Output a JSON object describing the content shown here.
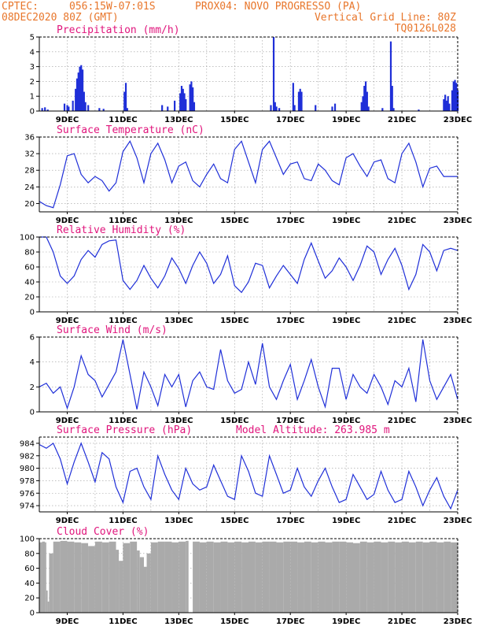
{
  "header": {
    "line1_left": "CPTEC:",
    "line1_coords": "056:15W-07:01S",
    "line1_station": "PROX04: NOVO PROGRESSO (PA)",
    "line2_left": "08DEC2020 80Z (GMT)",
    "line2_right": "Vertical Grid Line: 80Z",
    "line3_right": "TQ0126L028"
  },
  "colors": {
    "series": "#1f2fd8",
    "cloud": "#aaaaaa",
    "header": "#e8762b",
    "title": "#e0157c",
    "grid": "#9a9a9a"
  },
  "x_tick_labels": [
    "9DEC",
    "11DEC",
    "13DEC",
    "15DEC",
    "17DEC",
    "19DEC",
    "21DEC",
    "23DEC"
  ],
  "chart_data": [
    {
      "type": "bar",
      "title": "Precipitation (mm/h)",
      "ylim": [
        0,
        5
      ],
      "yticks": [
        0,
        1,
        2,
        3,
        4,
        5
      ],
      "x_start_day": 8.0,
      "x_end_day": 23.0,
      "values": [
        [
          8.1,
          0.2
        ],
        [
          8.2,
          0.25
        ],
        [
          8.3,
          0.1
        ],
        [
          8.9,
          0.5
        ],
        [
          9.0,
          0.4
        ],
        [
          9.05,
          0.3
        ],
        [
          9.2,
          0.7
        ],
        [
          9.3,
          1.5
        ],
        [
          9.35,
          2.2
        ],
        [
          9.4,
          2.6
        ],
        [
          9.45,
          3.0
        ],
        [
          9.5,
          3.1
        ],
        [
          9.55,
          2.8
        ],
        [
          9.6,
          1.3
        ],
        [
          9.65,
          0.6
        ],
        [
          9.75,
          0.4
        ],
        [
          10.15,
          0.2
        ],
        [
          10.3,
          0.15
        ],
        [
          11.05,
          1.3
        ],
        [
          11.1,
          1.9
        ],
        [
          11.15,
          0.2
        ],
        [
          12.4,
          0.4
        ],
        [
          12.6,
          0.3
        ],
        [
          12.85,
          0.7
        ],
        [
          13.05,
          1.2
        ],
        [
          13.1,
          1.7
        ],
        [
          13.15,
          1.5
        ],
        [
          13.2,
          1.2
        ],
        [
          13.25,
          0.8
        ],
        [
          13.4,
          1.8
        ],
        [
          13.45,
          2.0
        ],
        [
          13.5,
          1.6
        ],
        [
          13.55,
          0.6
        ],
        [
          16.3,
          0.4
        ],
        [
          16.4,
          5.0
        ],
        [
          16.45,
          0.6
        ],
        [
          16.5,
          0.3
        ],
        [
          16.6,
          0.2
        ],
        [
          17.1,
          1.9
        ],
        [
          17.15,
          0.4
        ],
        [
          17.3,
          1.3
        ],
        [
          17.35,
          1.5
        ],
        [
          17.4,
          1.3
        ],
        [
          17.9,
          0.4
        ],
        [
          18.5,
          0.3
        ],
        [
          18.6,
          0.5
        ],
        [
          19.55,
          0.6
        ],
        [
          19.6,
          1.0
        ],
        [
          19.65,
          1.7
        ],
        [
          19.7,
          2.0
        ],
        [
          19.75,
          1.3
        ],
        [
          19.8,
          0.3
        ],
        [
          20.3,
          0.2
        ],
        [
          20.6,
          4.7
        ],
        [
          20.65,
          1.7
        ],
        [
          20.7,
          0.2
        ],
        [
          21.6,
          0.1
        ],
        [
          22.5,
          0.8
        ],
        [
          22.55,
          1.1
        ],
        [
          22.6,
          0.7
        ],
        [
          22.65,
          1.0
        ],
        [
          22.7,
          0.5
        ],
        [
          22.8,
          1.4
        ],
        [
          22.85,
          2.0
        ],
        [
          22.9,
          2.1
        ],
        [
          22.95,
          1.9
        ],
        [
          23.0,
          1.4
        ]
      ]
    },
    {
      "type": "line",
      "title": "Surface Temperature (nC)",
      "ylim": [
        18,
        36
      ],
      "yticks": [
        20,
        24,
        28,
        32,
        36
      ],
      "x": [
        8.0,
        8.25,
        8.5,
        8.75,
        9.0,
        9.25,
        9.5,
        9.75,
        10.0,
        10.25,
        10.5,
        10.75,
        11.0,
        11.25,
        11.5,
        11.75,
        12.0,
        12.25,
        12.5,
        12.75,
        13.0,
        13.25,
        13.5,
        13.75,
        14.0,
        14.25,
        14.5,
        14.75,
        15.0,
        15.25,
        15.5,
        15.75,
        16.0,
        16.25,
        16.5,
        16.75,
        17.0,
        17.25,
        17.5,
        17.75,
        18.0,
        18.25,
        18.5,
        18.75,
        19.0,
        19.25,
        19.5,
        19.75,
        20.0,
        20.25,
        20.5,
        20.75,
        21.0,
        21.25,
        21.5,
        21.75,
        22.0,
        22.25,
        22.5,
        22.75,
        23.0
      ],
      "y": [
        20.5,
        19.5,
        19.0,
        24.5,
        31.5,
        32.0,
        27.0,
        25.0,
        26.5,
        25.5,
        23.0,
        25.0,
        32.5,
        35.0,
        31.0,
        25.0,
        32.0,
        34.5,
        30.5,
        25.0,
        29.0,
        30.0,
        25.5,
        24.0,
        27.0,
        29.5,
        26.0,
        25.0,
        33.0,
        35.0,
        30.0,
        25.0,
        33.0,
        35.0,
        31.0,
        27.0,
        29.5,
        30.0,
        26.0,
        25.5,
        29.5,
        28.0,
        25.5,
        24.5,
        31.0,
        32.0,
        29.0,
        26.5,
        30.0,
        30.5,
        26.0,
        25.0,
        32.0,
        34.5,
        30.0,
        24.0,
        28.5,
        29.0,
        26.5,
        26.5,
        26.5
      ]
    },
    {
      "type": "line",
      "title": "Relative Humidity (%)",
      "ylim": [
        0,
        100
      ],
      "yticks": [
        0,
        20,
        40,
        60,
        80,
        100
      ],
      "x": [
        8.0,
        8.25,
        8.5,
        8.75,
        9.0,
        9.25,
        9.5,
        9.75,
        10.0,
        10.25,
        10.5,
        10.75,
        11.0,
        11.25,
        11.5,
        11.75,
        12.0,
        12.25,
        12.5,
        12.75,
        13.0,
        13.25,
        13.5,
        13.75,
        14.0,
        14.25,
        14.5,
        14.75,
        15.0,
        15.25,
        15.5,
        15.75,
        16.0,
        16.25,
        16.5,
        16.75,
        17.0,
        17.25,
        17.5,
        17.75,
        18.0,
        18.25,
        18.5,
        18.75,
        19.0,
        19.25,
        19.5,
        19.75,
        20.0,
        20.25,
        20.5,
        20.75,
        21.0,
        21.25,
        21.5,
        21.75,
        22.0,
        22.25,
        22.5,
        22.75,
        23.0
      ],
      "y": [
        100,
        100,
        80,
        48,
        38,
        48,
        70,
        82,
        73,
        90,
        95,
        96,
        42,
        30,
        42,
        62,
        45,
        32,
        48,
        72,
        58,
        38,
        62,
        80,
        65,
        38,
        50,
        75,
        35,
        26,
        40,
        65,
        62,
        32,
        48,
        62,
        50,
        38,
        70,
        92,
        68,
        45,
        55,
        72,
        60,
        42,
        62,
        88,
        80,
        50,
        70,
        85,
        62,
        30,
        50,
        90,
        80,
        55,
        82,
        85,
        82
      ]
    },
    {
      "type": "line",
      "title": "Surface Wind (m/s)",
      "ylim": [
        0,
        6
      ],
      "yticks": [
        0,
        2,
        4,
        6
      ],
      "x": [
        8.0,
        8.25,
        8.5,
        8.75,
        9.0,
        9.25,
        9.5,
        9.75,
        10.0,
        10.25,
        10.5,
        10.75,
        11.0,
        11.25,
        11.5,
        11.75,
        12.0,
        12.25,
        12.5,
        12.75,
        13.0,
        13.25,
        13.5,
        13.75,
        14.0,
        14.25,
        14.5,
        14.75,
        15.0,
        15.25,
        15.5,
        15.75,
        16.0,
        16.25,
        16.5,
        16.75,
        17.0,
        17.25,
        17.5,
        17.75,
        18.0,
        18.25,
        18.5,
        18.75,
        19.0,
        19.25,
        19.5,
        19.75,
        20.0,
        20.25,
        20.5,
        20.75,
        21.0,
        21.25,
        21.5,
        21.75,
        22.0,
        22.25,
        22.5,
        22.75,
        23.0
      ],
      "y": [
        2.0,
        2.3,
        1.5,
        2.0,
        0.3,
        2.0,
        4.5,
        3.0,
        2.5,
        1.2,
        2.2,
        3.2,
        5.8,
        3.0,
        0.2,
        3.2,
        2.0,
        0.5,
        3.0,
        2.0,
        3.0,
        0.4,
        2.5,
        3.2,
        2.0,
        1.8,
        5.0,
        2.5,
        1.5,
        1.8,
        4.0,
        2.2,
        5.5,
        2.0,
        1.0,
        2.5,
        3.8,
        1.0,
        2.5,
        4.2,
        2.0,
        0.4,
        3.5,
        3.5,
        1.0,
        3.0,
        2.0,
        1.5,
        3.0,
        2.0,
        0.6,
        2.5,
        2.0,
        3.5,
        0.8,
        5.8,
        2.5,
        1.0,
        2.0,
        3.0,
        1.0
      ]
    },
    {
      "type": "line",
      "title": "Surface Pressure (hPa)",
      "subtitle": "Model Altitude: 263.985 m",
      "ylim": [
        973,
        985
      ],
      "yticks": [
        974,
        976,
        978,
        980,
        982,
        984
      ],
      "x": [
        8.0,
        8.25,
        8.5,
        8.75,
        9.0,
        9.25,
        9.5,
        9.75,
        10.0,
        10.25,
        10.5,
        10.75,
        11.0,
        11.25,
        11.5,
        11.75,
        12.0,
        12.25,
        12.5,
        12.75,
        13.0,
        13.25,
        13.5,
        13.75,
        14.0,
        14.25,
        14.5,
        14.75,
        15.0,
        15.25,
        15.5,
        15.75,
        16.0,
        16.25,
        16.5,
        16.75,
        17.0,
        17.25,
        17.5,
        17.75,
        18.0,
        18.25,
        18.5,
        18.75,
        19.0,
        19.25,
        19.5,
        19.75,
        20.0,
        20.25,
        20.5,
        20.75,
        21.0,
        21.25,
        21.5,
        21.75,
        22.0,
        22.25,
        22.5,
        22.75,
        23.0
      ],
      "y": [
        983.8,
        983.2,
        984.0,
        981.5,
        977.5,
        981.0,
        984.0,
        981.0,
        977.8,
        982.5,
        981.5,
        977.0,
        974.5,
        979.5,
        980.0,
        977.0,
        975.0,
        982.0,
        979.0,
        976.5,
        975.0,
        980.0,
        977.5,
        976.5,
        977.0,
        980.5,
        978.0,
        975.5,
        975.0,
        982.0,
        979.5,
        976.0,
        975.5,
        982.0,
        979.0,
        976.0,
        976.5,
        980.0,
        977.0,
        975.5,
        978.0,
        980.0,
        977.0,
        974.5,
        975.0,
        979.0,
        977.0,
        975.0,
        975.8,
        979.5,
        976.5,
        974.5,
        975.0,
        979.5,
        977.0,
        974.0,
        976.5,
        978.5,
        975.5,
        973.5,
        976.5
      ]
    },
    {
      "type": "bar",
      "title": "Cloud Cover (%)",
      "ylim": [
        0,
        100
      ],
      "yticks": [
        0,
        20,
        40,
        60,
        80,
        100
      ],
      "x_start_day": 8.0,
      "x_end_day": 23.0,
      "values": [
        [
          8.0,
          95
        ],
        [
          8.1,
          96
        ],
        [
          8.2,
          95
        ],
        [
          8.25,
          30
        ],
        [
          8.3,
          15
        ],
        [
          8.35,
          80
        ],
        [
          8.5,
          96
        ],
        [
          8.75,
          97
        ],
        [
          9.0,
          96
        ],
        [
          9.25,
          95
        ],
        [
          9.5,
          94
        ],
        [
          9.75,
          90
        ],
        [
          10.0,
          96
        ],
        [
          10.25,
          95
        ],
        [
          10.5,
          96
        ],
        [
          10.75,
          85
        ],
        [
          10.85,
          70
        ],
        [
          11.0,
          94
        ],
        [
          11.25,
          96
        ],
        [
          11.5,
          84
        ],
        [
          11.6,
          75
        ],
        [
          11.75,
          62
        ],
        [
          11.85,
          80
        ],
        [
          12.0,
          95
        ],
        [
          12.25,
          96
        ],
        [
          12.5,
          96
        ],
        [
          12.75,
          95
        ],
        [
          13.0,
          96
        ],
        [
          13.25,
          97
        ],
        [
          13.35,
          0
        ],
        [
          13.5,
          96
        ],
        [
          13.75,
          95
        ],
        [
          14.0,
          96
        ],
        [
          14.25,
          95
        ],
        [
          14.5,
          96
        ],
        [
          14.75,
          95
        ],
        [
          15.0,
          96
        ],
        [
          15.25,
          95
        ],
        [
          15.5,
          96
        ],
        [
          15.75,
          95
        ],
        [
          16.0,
          96
        ],
        [
          16.25,
          96
        ],
        [
          16.5,
          95
        ],
        [
          16.75,
          96
        ],
        [
          17.0,
          96
        ],
        [
          17.25,
          95
        ],
        [
          17.5,
          96
        ],
        [
          17.75,
          95
        ],
        [
          18.0,
          96
        ],
        [
          18.25,
          95
        ],
        [
          18.5,
          96
        ],
        [
          18.75,
          96
        ],
        [
          19.0,
          95
        ],
        [
          19.25,
          94
        ],
        [
          19.5,
          96
        ],
        [
          19.75,
          95
        ],
        [
          20.0,
          96
        ],
        [
          20.25,
          95
        ],
        [
          20.5,
          96
        ],
        [
          20.75,
          95
        ],
        [
          21.0,
          96
        ],
        [
          21.25,
          95
        ],
        [
          21.5,
          96
        ],
        [
          21.75,
          95
        ],
        [
          22.0,
          96
        ],
        [
          22.25,
          95
        ],
        [
          22.5,
          96
        ],
        [
          22.75,
          95
        ],
        [
          23.0,
          95
        ]
      ]
    }
  ]
}
